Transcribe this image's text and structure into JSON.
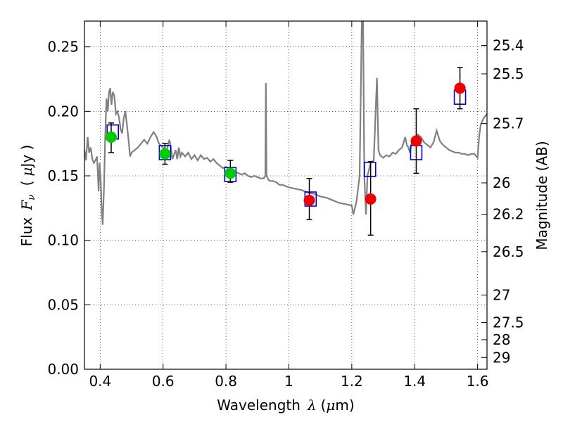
{
  "chart_data": {
    "type": "scatter",
    "xlabel": {
      "prefix": "Wavelength",
      "symbol": "λ",
      "unit_open": "(",
      "unit_mu": "μ",
      "unit_rest": "m)"
    },
    "ylabel": {
      "prefix": "Flux",
      "symbol": "F",
      "subscript": "ν",
      "unit_open": "(",
      "unit_mu": "μ",
      "unit_rest": "Jy )"
    },
    "y2label": "Magnitude (AB)",
    "xlim": [
      0.35,
      1.63
    ],
    "ylim": [
      0.0,
      0.27
    ],
    "x_ticks": [
      0.4,
      0.6,
      0.8,
      1.0,
      1.2,
      1.4,
      1.6
    ],
    "x_tick_labels": [
      "0.4",
      "0.6",
      "0.8",
      "1",
      "1.2",
      "1.4",
      "1.6"
    ],
    "y_ticks": [
      0.0,
      0.05,
      0.1,
      0.15,
      0.2,
      0.25
    ],
    "y_tick_labels": [
      "0.00",
      "0.05",
      "0.10",
      "0.15",
      "0.20",
      "0.25"
    ],
    "y2_ticks": [
      {
        "label": "25.4",
        "mag": 25.4
      },
      {
        "label": "25.5",
        "mag": 25.5
      },
      {
        "label": "25.7",
        "mag": 25.7
      },
      {
        "label": "26",
        "mag": 26.0
      },
      {
        "label": "26.2",
        "mag": 26.2
      },
      {
        "label": "26.5",
        "mag": 26.5
      },
      {
        "label": "27",
        "mag": 27.0
      },
      {
        "label": "27.5",
        "mag": 27.5
      },
      {
        "label": "28",
        "mag": 28.0
      },
      {
        "label": "29",
        "mag": 29.0
      }
    ],
    "grid": true,
    "colors": {
      "model": "#808080",
      "model_mag": "#0000cc",
      "green": "#00cc00",
      "red": "#ee0000",
      "errorbar": "#000000"
    },
    "model_spectrum": [
      [
        0.35,
        0.17
      ],
      [
        0.355,
        0.162
      ],
      [
        0.36,
        0.18
      ],
      [
        0.365,
        0.168
      ],
      [
        0.37,
        0.172
      ],
      [
        0.375,
        0.163
      ],
      [
        0.38,
        0.16
      ],
      [
        0.385,
        0.162
      ],
      [
        0.39,
        0.165
      ],
      [
        0.393,
        0.15
      ],
      [
        0.395,
        0.138
      ],
      [
        0.398,
        0.16
      ],
      [
        0.402,
        0.145
      ],
      [
        0.405,
        0.122
      ],
      [
        0.408,
        0.112
      ],
      [
        0.412,
        0.14
      ],
      [
        0.416,
        0.18
      ],
      [
        0.42,
        0.21
      ],
      [
        0.424,
        0.2
      ],
      [
        0.428,
        0.215
      ],
      [
        0.432,
        0.218
      ],
      [
        0.436,
        0.205
      ],
      [
        0.44,
        0.215
      ],
      [
        0.445,
        0.212
      ],
      [
        0.45,
        0.198
      ],
      [
        0.455,
        0.2
      ],
      [
        0.46,
        0.195
      ],
      [
        0.465,
        0.186
      ],
      [
        0.47,
        0.183
      ],
      [
        0.475,
        0.195
      ],
      [
        0.48,
        0.2
      ],
      [
        0.485,
        0.19
      ],
      [
        0.49,
        0.178
      ],
      [
        0.495,
        0.165
      ],
      [
        0.5,
        0.168
      ],
      [
        0.51,
        0.17
      ],
      [
        0.52,
        0.172
      ],
      [
        0.53,
        0.175
      ],
      [
        0.54,
        0.178
      ],
      [
        0.55,
        0.175
      ],
      [
        0.56,
        0.18
      ],
      [
        0.57,
        0.184
      ],
      [
        0.58,
        0.18
      ],
      [
        0.585,
        0.176
      ],
      [
        0.59,
        0.174
      ],
      [
        0.6,
        0.172
      ],
      [
        0.605,
        0.165
      ],
      [
        0.61,
        0.168
      ],
      [
        0.62,
        0.178
      ],
      [
        0.625,
        0.172
      ],
      [
        0.63,
        0.163
      ],
      [
        0.64,
        0.17
      ],
      [
        0.645,
        0.163
      ],
      [
        0.65,
        0.172
      ],
      [
        0.655,
        0.165
      ],
      [
        0.66,
        0.168
      ],
      [
        0.67,
        0.165
      ],
      [
        0.68,
        0.168
      ],
      [
        0.69,
        0.163
      ],
      [
        0.7,
        0.166
      ],
      [
        0.71,
        0.162
      ],
      [
        0.72,
        0.166
      ],
      [
        0.73,
        0.163
      ],
      [
        0.74,
        0.164
      ],
      [
        0.75,
        0.161
      ],
      [
        0.76,
        0.163
      ],
      [
        0.77,
        0.16
      ],
      [
        0.78,
        0.158
      ],
      [
        0.79,
        0.156
      ],
      [
        0.8,
        0.157
      ],
      [
        0.81,
        0.155
      ],
      [
        0.82,
        0.154
      ],
      [
        0.83,
        0.153
      ],
      [
        0.84,
        0.152
      ],
      [
        0.85,
        0.151
      ],
      [
        0.86,
        0.152
      ],
      [
        0.87,
        0.15
      ],
      [
        0.88,
        0.149
      ],
      [
        0.89,
        0.15
      ],
      [
        0.9,
        0.149
      ],
      [
        0.91,
        0.148
      ],
      [
        0.92,
        0.148
      ],
      [
        0.925,
        0.15
      ],
      [
        0.927,
        0.222
      ],
      [
        0.929,
        0.15
      ],
      [
        0.935,
        0.147
      ],
      [
        0.94,
        0.146
      ],
      [
        0.95,
        0.146
      ],
      [
        0.96,
        0.145
      ],
      [
        0.97,
        0.143
      ],
      [
        0.98,
        0.143
      ],
      [
        0.99,
        0.142
      ],
      [
        1.0,
        0.141
      ],
      [
        1.02,
        0.14
      ],
      [
        1.04,
        0.139
      ],
      [
        1.06,
        0.137
      ],
      [
        1.08,
        0.136
      ],
      [
        1.1,
        0.134
      ],
      [
        1.12,
        0.133
      ],
      [
        1.14,
        0.131
      ],
      [
        1.16,
        0.129
      ],
      [
        1.18,
        0.128
      ],
      [
        1.2,
        0.127
      ],
      [
        1.205,
        0.12
      ],
      [
        1.215,
        0.13
      ],
      [
        1.225,
        0.15
      ],
      [
        1.232,
        0.27
      ],
      [
        1.236,
        0.27
      ],
      [
        1.24,
        0.15
      ],
      [
        1.245,
        0.12
      ],
      [
        1.25,
        0.15
      ],
      [
        1.255,
        0.155
      ],
      [
        1.26,
        0.16
      ],
      [
        1.27,
        0.162
      ],
      [
        1.275,
        0.195
      ],
      [
        1.28,
        0.226
      ],
      [
        1.285,
        0.17
      ],
      [
        1.29,
        0.166
      ],
      [
        1.3,
        0.164
      ],
      [
        1.31,
        0.166
      ],
      [
        1.32,
        0.165
      ],
      [
        1.33,
        0.168
      ],
      [
        1.34,
        0.167
      ],
      [
        1.35,
        0.17
      ],
      [
        1.36,
        0.172
      ],
      [
        1.37,
        0.18
      ],
      [
        1.375,
        0.174
      ],
      [
        1.38,
        0.172
      ],
      [
        1.385,
        0.168
      ],
      [
        1.39,
        0.175
      ],
      [
        1.4,
        0.18
      ],
      [
        1.41,
        0.182
      ],
      [
        1.42,
        0.18
      ],
      [
        1.43,
        0.176
      ],
      [
        1.44,
        0.174
      ],
      [
        1.45,
        0.172
      ],
      [
        1.46,
        0.176
      ],
      [
        1.47,
        0.185
      ],
      [
        1.48,
        0.177
      ],
      [
        1.49,
        0.174
      ],
      [
        1.5,
        0.172
      ],
      [
        1.51,
        0.17
      ],
      [
        1.52,
        0.169
      ],
      [
        1.53,
        0.168
      ],
      [
        1.54,
        0.168
      ],
      [
        1.55,
        0.167
      ],
      [
        1.56,
        0.167
      ],
      [
        1.57,
        0.166
      ],
      [
        1.58,
        0.167
      ],
      [
        1.59,
        0.167
      ],
      [
        1.6,
        0.164
      ],
      [
        1.605,
        0.18
      ],
      [
        1.61,
        0.19
      ],
      [
        1.62,
        0.195
      ],
      [
        1.63,
        0.198
      ]
    ],
    "model_mag_points": [
      {
        "x": 0.44,
        "y": 0.184
      },
      {
        "x": 0.606,
        "y": 0.168
      },
      {
        "x": 0.814,
        "y": 0.151
      },
      {
        "x": 1.069,
        "y": 0.132
      },
      {
        "x": 1.258,
        "y": 0.155
      },
      {
        "x": 1.405,
        "y": 0.168
      },
      {
        "x": 1.544,
        "y": 0.211
      }
    ],
    "series": [
      {
        "color": "green",
        "points": [
          {
            "x": 0.435,
            "y": 0.18,
            "err": [
              0.168,
              0.191
            ]
          },
          {
            "x": 0.606,
            "y": 0.167,
            "err": [
              0.159,
              0.175
            ]
          },
          {
            "x": 0.814,
            "y": 0.152,
            "err": [
              0.145,
              0.162
            ]
          }
        ]
      },
      {
        "color": "red",
        "points": [
          {
            "x": 1.065,
            "y": 0.131,
            "err": [
              0.116,
              0.148
            ]
          },
          {
            "x": 1.26,
            "y": 0.132,
            "err": [
              0.104,
              0.161
            ]
          },
          {
            "x": 1.405,
            "y": 0.177,
            "err": [
              0.152,
              0.202
            ]
          },
          {
            "x": 1.544,
            "y": 0.218,
            "err": [
              0.202,
              0.234
            ]
          }
        ]
      }
    ]
  }
}
